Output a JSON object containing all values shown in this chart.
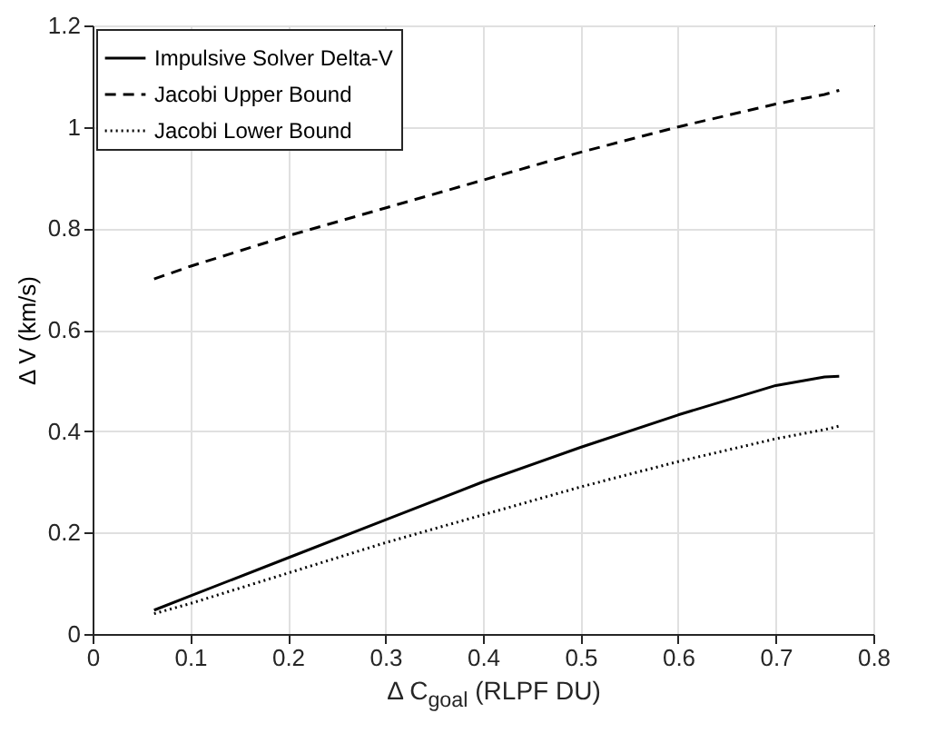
{
  "chart_data": {
    "type": "line",
    "xlabel": "Δ C$_{goal}$ (RLPF DU)",
    "ylabel": "Δ V (km/s)",
    "x": [
      0.063,
      0.1,
      0.2,
      0.3,
      0.4,
      0.5,
      0.6,
      0.7,
      0.75,
      0.765
    ],
    "series": [
      {
        "name": "Impulsive Solver Delta-V",
        "color": "#000000",
        "line_style": "solid",
        "values": [
          0.047,
          0.075,
          0.15,
          0.225,
          0.3,
          0.368,
          0.432,
          0.49,
          0.507,
          0.508
        ]
      },
      {
        "name": "Jacobi Upper Bound",
        "color": "#000000",
        "line_style": "dashed",
        "values": [
          0.7,
          0.725,
          0.785,
          0.84,
          0.895,
          0.95,
          1.0,
          1.045,
          1.064,
          1.072
        ]
      },
      {
        "name": "Jacobi Lower Bound",
        "color": "#000000",
        "line_style": "dotted",
        "values": [
          0.04,
          0.06,
          0.12,
          0.18,
          0.235,
          0.29,
          0.34,
          0.385,
          0.403,
          0.41
        ]
      }
    ],
    "xlim": [
      0,
      0.8
    ],
    "xticks": [
      0,
      0.1,
      0.2,
      0.3,
      0.4,
      0.5,
      0.6,
      0.7,
      0.8
    ],
    "ylim": [
      0,
      1.2
    ],
    "yticks": [
      0,
      0.2,
      0.4,
      0.6,
      0.8,
      1,
      1.2
    ],
    "grid": true,
    "legend": "top left"
  }
}
